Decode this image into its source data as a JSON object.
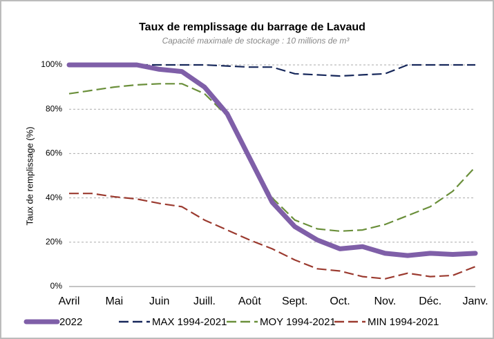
{
  "chart_data": {
    "type": "line",
    "title": "Taux de remplissage du barrage de Lavaud",
    "subtitle": "Capacité maximale de stockage :  10 millions de m³",
    "y_label": "Taux de remplissage (%)",
    "categories": [
      "Avril",
      null,
      "Mai",
      null,
      "Juin",
      null,
      "Juill.",
      null,
      "Août",
      null,
      "Sept.",
      null,
      "Oct.",
      null,
      "Nov.",
      null,
      "Déc.",
      null,
      "Janv."
    ],
    "series": [
      {
        "name": "2022",
        "color": "#7f5fa8",
        "width": 7,
        "dash": "solid",
        "values": [
          100,
          100,
          100,
          100,
          98,
          97,
          90,
          78,
          58,
          38,
          27,
          21,
          17,
          18,
          15,
          14,
          15,
          14.5,
          15
        ]
      },
      {
        "name": "MAX 1994-2021",
        "color": "#16275a",
        "width": 2.2,
        "dash": "dashed",
        "values": [
          100,
          100,
          100,
          100,
          100,
          100,
          100,
          99.5,
          99,
          99,
          96,
          95.5,
          95,
          95.5,
          96,
          100,
          100,
          100,
          100
        ]
      },
      {
        "name": "MOY 1994-2021",
        "color": "#6a8f3a",
        "width": 2.2,
        "dash": "dashed",
        "values": [
          87,
          88.5,
          90,
          91,
          91.5,
          91.5,
          87,
          77,
          58,
          40,
          30,
          26,
          25,
          25.5,
          28,
          32,
          36,
          43,
          54
        ]
      },
      {
        "name": "MIN 1994-2021",
        "color": "#9b3a2f",
        "width": 2.2,
        "dash": "dashed",
        "values": [
          42,
          42,
          40.5,
          39.5,
          37.5,
          36,
          30,
          25.5,
          21,
          17,
          12,
          8,
          7,
          4.5,
          3.5,
          6,
          4.5,
          5,
          9
        ]
      }
    ],
    "ylim": [
      0,
      100
    ],
    "yticks": [
      {
        "value": 0,
        "label": "0%"
      },
      {
        "value": 20,
        "label": "20%"
      },
      {
        "value": 40,
        "label": "40%"
      },
      {
        "value": 60,
        "label": "60%"
      },
      {
        "value": 80,
        "label": "80%"
      },
      {
        "value": 100,
        "label": "100%"
      }
    ],
    "grid": true,
    "legend": "bottom"
  }
}
